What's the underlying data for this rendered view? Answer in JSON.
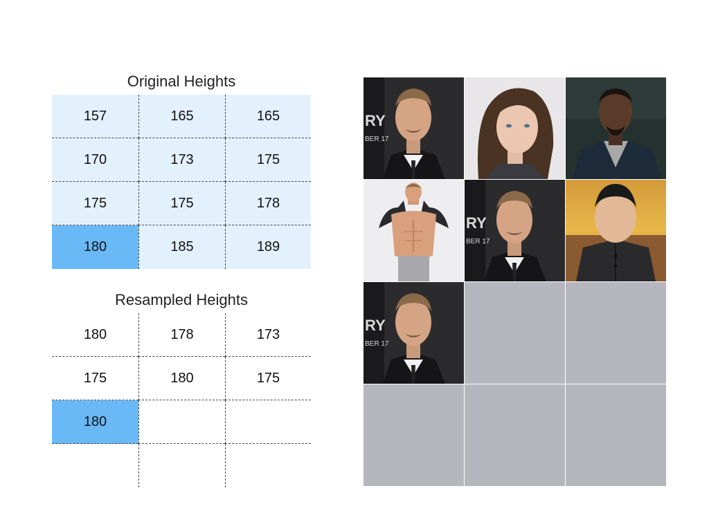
{
  "original": {
    "title": "Original Heights",
    "rows": [
      [
        "157",
        "165",
        "165"
      ],
      [
        "170",
        "173",
        "175"
      ],
      [
        "175",
        "175",
        "178"
      ],
      [
        "180",
        "185",
        "189"
      ]
    ]
  },
  "resampled": {
    "title": "Resampled Heights",
    "rows": [
      [
        "180",
        "178",
        "173"
      ],
      [
        "175",
        "180",
        "175"
      ],
      [
        "180",
        "",
        ""
      ],
      [
        "",
        "",
        ""
      ]
    ]
  },
  "colors": {
    "table_bg": "#e3f1fd",
    "highlight": "#6ab9f7",
    "empty_tile": "#b6b6bf"
  },
  "photo_grid": [
    [
      "portrait-photo-1",
      "portrait-photo-2",
      "portrait-photo-3"
    ],
    [
      "portrait-photo-4",
      "portrait-photo-1",
      "portrait-photo-5"
    ],
    [
      "portrait-photo-1",
      "empty",
      "empty"
    ],
    [
      "empty",
      "empty",
      "empty"
    ]
  ]
}
